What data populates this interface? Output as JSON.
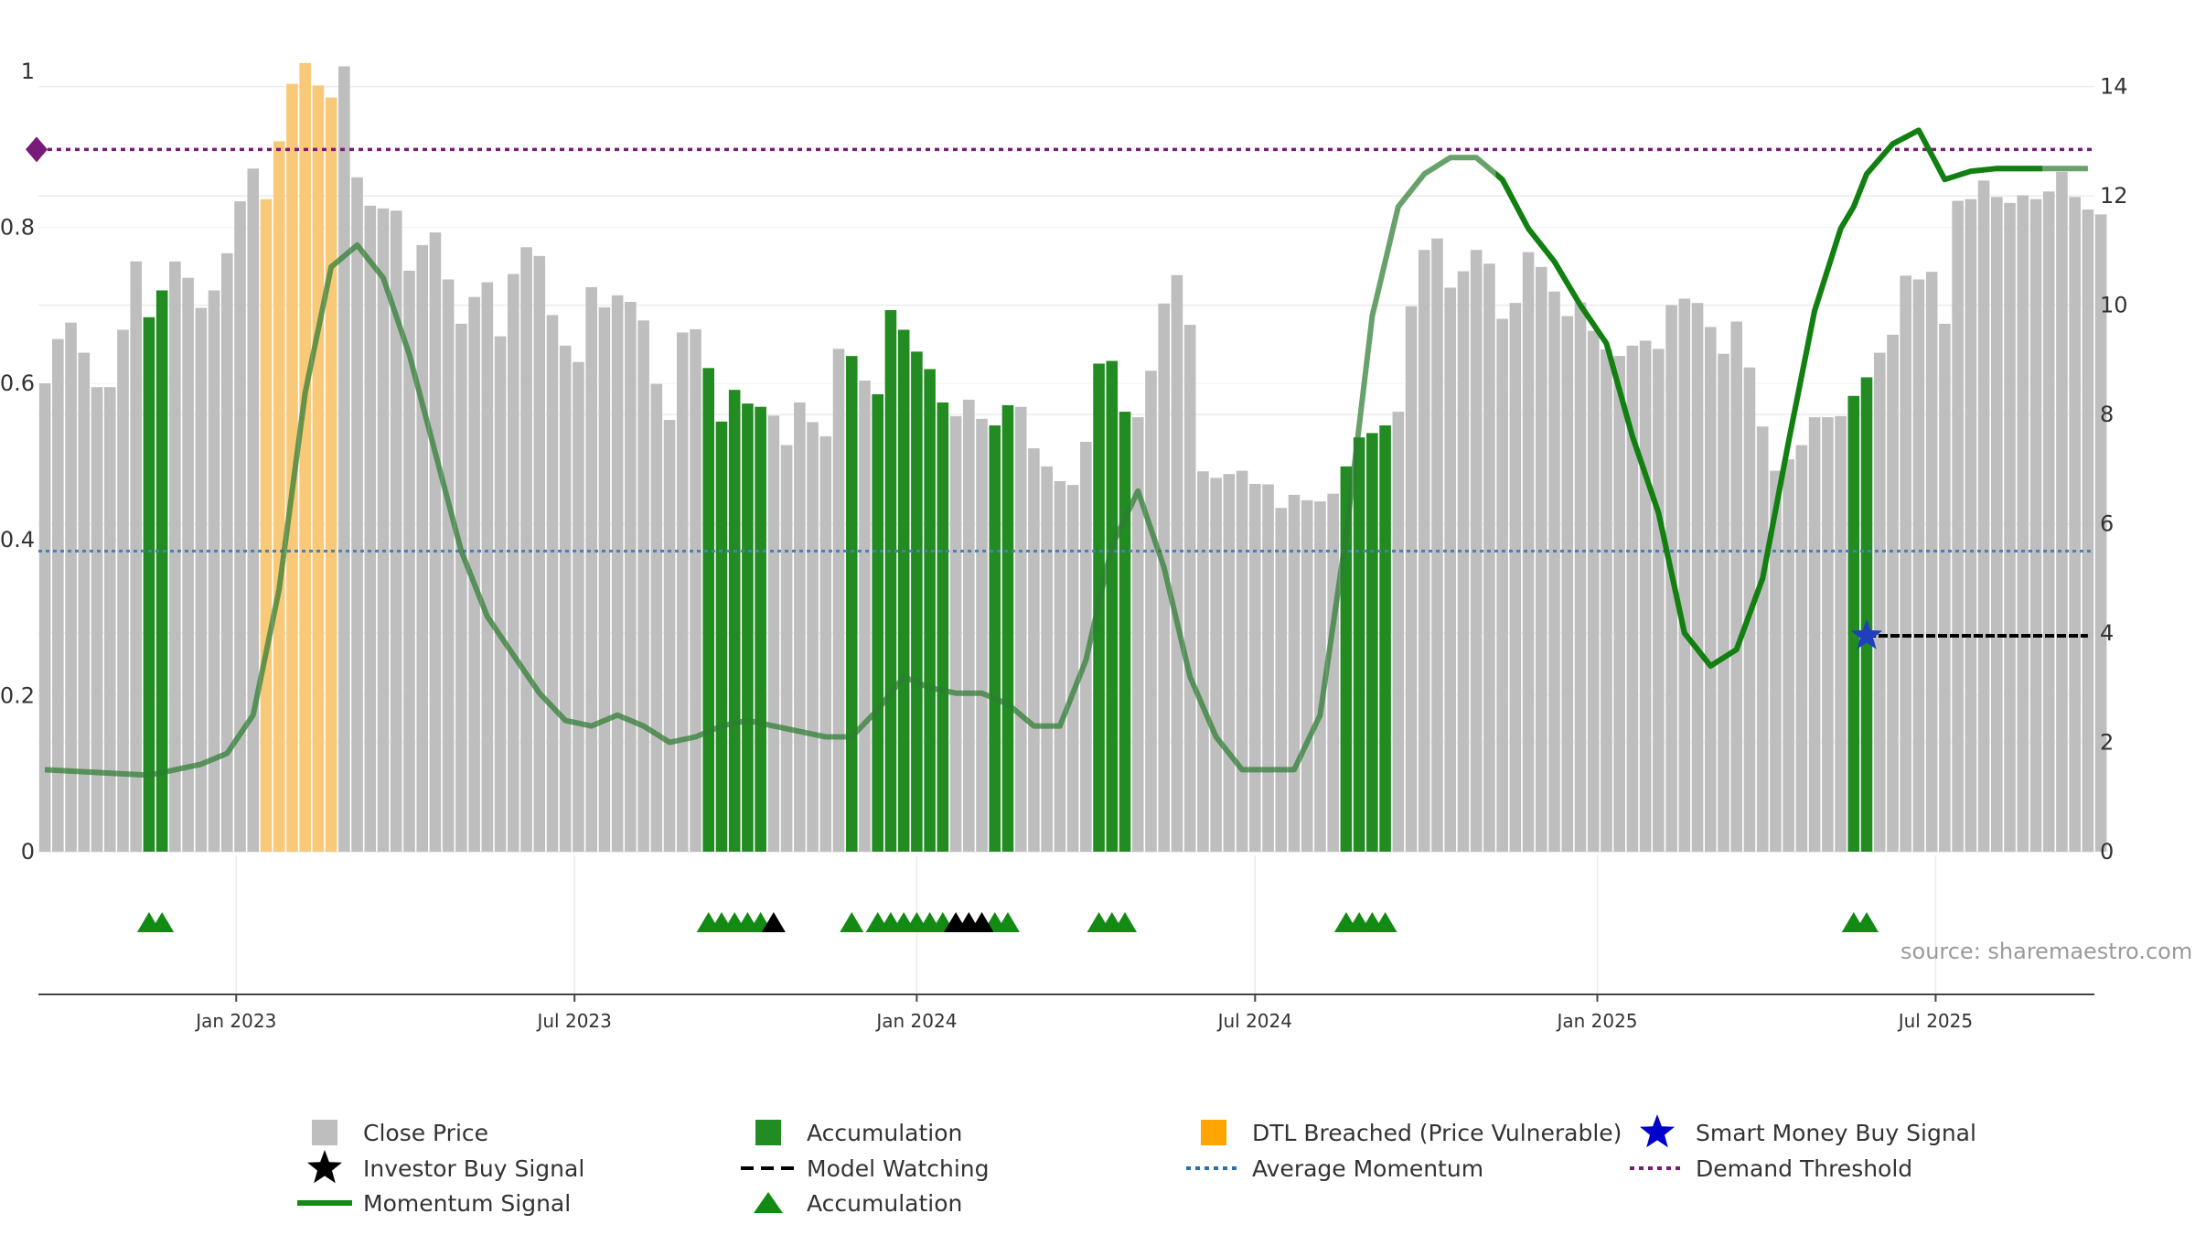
{
  "chart_data": {
    "type": "bar",
    "source": "source: sharemaestro.com",
    "left_axis": {
      "min": 0,
      "max": 1,
      "ticks": [
        "0",
        "0.2",
        "0.4",
        "0.6",
        "0.8",
        "1"
      ]
    },
    "right_axis": {
      "min": 0,
      "max": 15.5,
      "ticks": [
        "0",
        "2",
        "4",
        "6",
        "8",
        "10",
        "12",
        "14"
      ]
    },
    "x_axis": {
      "labels": [
        "Jan 2023",
        "Jul 2023",
        "Jan 2024",
        "Jul 2024",
        "Jan 2025",
        "Jul 2025"
      ],
      "label_weeks": [
        14.7,
        40.7,
        67,
        93,
        119.3,
        145.3
      ],
      "weeks_shown": [
        0,
        157
      ]
    },
    "grid": true,
    "bars": {
      "close_price_right_axis": [
        8.57,
        9.38,
        9.68,
        9.13,
        8.5,
        8.5,
        9.55,
        10.8,
        9.78,
        10.27,
        10.8,
        10.5,
        9.95,
        10.27,
        10.95,
        11.9,
        12.5,
        11.94,
        13.0,
        14.05,
        14.43,
        14.02,
        13.8,
        14.37,
        12.34,
        11.82,
        11.77,
        11.73,
        10.63,
        11.1,
        11.33,
        10.47,
        9.66,
        10.15,
        10.42,
        9.43,
        10.57,
        11.06,
        10.9,
        9.82,
        9.26,
        8.96,
        10.33,
        9.96,
        10.18,
        10.06,
        9.72,
        8.56,
        7.9,
        9.5,
        9.56,
        8.85,
        7.87,
        8.45,
        8.2,
        8.14,
        7.98,
        7.44,
        8.22,
        7.86,
        7.6,
        9.2,
        9.07,
        8.62,
        8.37,
        9.91,
        9.55,
        9.15,
        8.83,
        8.22,
        7.97,
        8.27,
        7.92,
        7.8,
        8.17,
        8.14,
        7.38,
        7.05,
        6.78,
        6.71,
        7.5,
        8.93,
        8.98,
        8.05,
        7.95,
        8.8,
        10.03,
        10.55,
        9.64,
        6.96,
        6.84,
        6.91,
        6.97,
        6.73,
        6.72,
        6.29,
        6.53,
        6.43,
        6.41,
        6.55,
        7.05,
        7.58,
        7.66,
        7.8,
        8.05,
        9.98,
        11.01,
        11.22,
        10.32,
        10.62,
        11.01,
        10.76,
        9.75,
        10.04,
        10.97,
        10.7,
        10.25,
        9.8,
        10.05,
        9.53,
        9.19,
        9.07,
        9.26,
        9.35,
        9.2,
        10.0,
        10.12,
        10.04,
        9.6,
        9.11,
        9.7,
        8.86,
        7.78,
        6.97,
        7.18,
        7.44,
        7.95,
        7.95,
        7.97,
        8.34,
        8.68,
        9.13,
        9.46,
        10.54,
        10.47,
        10.61,
        9.66,
        11.91,
        11.94,
        12.28,
        11.98,
        11.87,
        12.01,
        11.94,
        12.08,
        12.44,
        11.98,
        11.75,
        11.66
      ],
      "series": [
        {
          "name": "Close Price",
          "color": "#bebebe"
        },
        {
          "name": "Accumulation",
          "color": "#228b22",
          "weeks": [
            8,
            9,
            51,
            52,
            53,
            54,
            55,
            62,
            64,
            65,
            66,
            67,
            68,
            69,
            73,
            74,
            81,
            82,
            83,
            100,
            101,
            102,
            103,
            139,
            140
          ]
        },
        {
          "name": "DTL Breached (Price Vulnerable)",
          "color": "#f9c97a",
          "weeks": [
            17,
            18,
            19,
            20,
            21,
            22
          ]
        }
      ]
    },
    "momentum_signal": {
      "name": "Momentum Signal",
      "color": "#2e7d32",
      "weeks": [
        0,
        8,
        12,
        14,
        16,
        18,
        20,
        22,
        24,
        26,
        28,
        30,
        32,
        34,
        36,
        38,
        40,
        42,
        44,
        46,
        48,
        50,
        52,
        54,
        56,
        58,
        60,
        62,
        64,
        66,
        68,
        70,
        72,
        74,
        76,
        78,
        80,
        82,
        84,
        86,
        88,
        90,
        92,
        94,
        96,
        98,
        100,
        102,
        104,
        106,
        108,
        110,
        112,
        114,
        116,
        118,
        120,
        122,
        124,
        126,
        128,
        130,
        132,
        134,
        136,
        138,
        139,
        140,
        142,
        144,
        146,
        148,
        150,
        152,
        153,
        154,
        155,
        156,
        157
      ],
      "values": [
        1.5,
        1.4,
        1.6,
        1.8,
        2.5,
        4.8,
        8.4,
        10.7,
        11.1,
        10.5,
        9.1,
        7.3,
        5.5,
        4.3,
        3.6,
        2.9,
        2.4,
        2.3,
        2.5,
        2.3,
        2.0,
        2.1,
        2.3,
        2.4,
        2.3,
        2.2,
        2.1,
        2.1,
        2.6,
        3.2,
        3.0,
        2.9,
        2.9,
        2.7,
        2.3,
        2.3,
        3.5,
        5.6,
        6.6,
        5.2,
        3.2,
        2.1,
        1.5,
        1.5,
        1.5,
        2.5,
        5.8,
        9.8,
        11.8,
        12.4,
        12.7,
        12.7,
        12.3,
        11.4,
        10.8,
        10.0,
        9.3,
        7.6,
        6.2,
        4.0,
        3.4,
        3.7,
        5.0,
        7.5,
        9.9,
        11.4,
        11.8,
        12.4,
        12.95,
        13.2,
        12.3,
        12.45,
        12.5,
        12.5,
        12.5,
        12.5,
        12.5,
        12.5,
        12.5
      ],
      "solid_from_weeks": [
        111.5,
        153.5
      ]
    },
    "average_momentum": {
      "name": "Average Momentum",
      "color": "#4a7fb5",
      "value": 5.5
    },
    "demand_threshold": {
      "name": "Demand Threshold",
      "color": "#7a1a7a",
      "value": 12.85
    },
    "model_watching": {
      "name": "Model Watching",
      "color": "#000000",
      "value": 3.95,
      "weeks": [
        140,
        157
      ]
    },
    "smart_money_buy_signal": {
      "name": "Smart Money Buy Signal",
      "color": "#1f3fbf",
      "week": 140,
      "value": 3.95
    },
    "accumulation_markers": {
      "name": "Accumulation",
      "color": "#138a13",
      "weeks": [
        8,
        9,
        51,
        52,
        53,
        54,
        55,
        62,
        64,
        65,
        66,
        67,
        68,
        69,
        73,
        74,
        81,
        82,
        83,
        100,
        101,
        102,
        103,
        139,
        140
      ]
    },
    "investor_buy_markers": {
      "name": "Investor Buy Signal",
      "color": "#000000",
      "weeks": [
        56,
        70,
        71,
        72
      ]
    },
    "legend": [
      {
        "label": "Close Price",
        "kind": "square",
        "color": "#bebebe"
      },
      {
        "label": "Accumulation",
        "kind": "square",
        "color": "#228b22"
      },
      {
        "label": "DTL Breached (Price Vulnerable)",
        "kind": "square",
        "color": "#ffa500"
      },
      {
        "label": "Smart Money Buy Signal",
        "kind": "star",
        "color": "#0000cd"
      },
      {
        "label": "Investor Buy Signal",
        "kind": "star",
        "color": "#000000"
      },
      {
        "label": "Model Watching",
        "kind": "dash",
        "color": "#000000"
      },
      {
        "label": "Average Momentum",
        "kind": "dot",
        "color": "#2f6fa8"
      },
      {
        "label": "Demand Threshold",
        "kind": "dot",
        "color": "#7a1a7a"
      },
      {
        "label": "Momentum Signal",
        "kind": "line",
        "color": "#138a13"
      },
      {
        "label": "Accumulation",
        "kind": "triangle",
        "color": "#138a13"
      }
    ]
  }
}
